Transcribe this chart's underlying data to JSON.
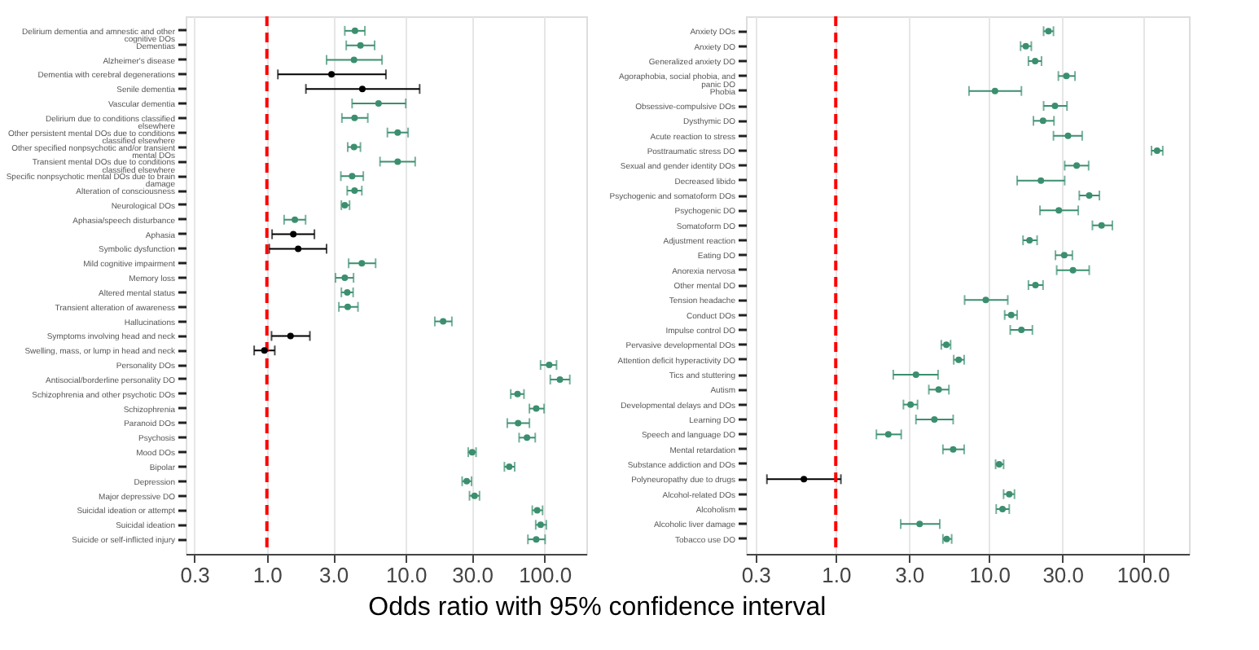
{
  "chart_data": [
    {
      "type": "scatter",
      "orientation": "horizontal",
      "xlabel": "Odds ratio with 95% confidence interval",
      "log": "x",
      "grid": "x",
      "marker": "circle",
      "xlim": [
        0.26,
        200
      ],
      "xticks": [
        {
          "value": 0.3,
          "label": "0.3"
        },
        {
          "value": 1,
          "label": "1.0"
        },
        {
          "value": 3,
          "label": "3.0"
        },
        {
          "value": 10,
          "label": "10.0"
        },
        {
          "value": 30,
          "label": "30.0"
        },
        {
          "value": 100,
          "label": "100.0"
        }
      ],
      "ref_lines": [
        {
          "axis": "x",
          "value": 1,
          "label": null,
          "color": "#ff0000",
          "line_style": "dashed"
        }
      ],
      "categories": [
        "Delirium dementia and amnestic and other cognitive DOs",
        "Dementias",
        "Alzheimer's disease",
        "Dementia with cerebral degenerations",
        "Senile dementia",
        "Vascular dementia",
        "Delirium due to conditions classified elsewhere",
        "Other persistent mental DOs due to conditions classified elsewhere",
        "Other specified nonpsychotic and/or transient mental DOs",
        "Transient mental DOs due to conditions classified elsewhere",
        "Specific nonpsychotic mental DOs due to brain damage",
        "Alteration of consciousness",
        "Neurological DOs",
        "Aphasia/speech disturbance",
        "Aphasia",
        "Symbolic dysfunction",
        "Mild cognitive impairment",
        "Memory loss",
        "Altered mental status",
        "Transient alteration of awareness",
        "Hallucinations",
        "Symptoms involving head and neck",
        "Swelling, mass, or lump in head and neck",
        "Personality DOs",
        "Antisocial/borderline personality DO",
        "Schizophrenia and other psychotic DOs",
        "Schizophrenia",
        "Paranoid DOs",
        "Psychosis",
        "Mood DOs",
        "Bipolar",
        "Depression",
        "Major depressive DO",
        "Suicidal ideation or attempt",
        "Suicidal ideation",
        "Suicide or self-inflicted injury"
      ],
      "values": [
        4.31,
        4.72,
        4.24,
        2.92,
        4.87,
        6.37,
        4.28,
        8.75,
        4.24,
        8.75,
        4.11,
        4.28,
        3.64,
        1.59,
        1.55,
        1.68,
        4.83,
        3.64,
        3.79,
        3.82,
        18.6,
        1.48,
        0.96,
        108,
        129,
        63.9,
        87.1,
        64.5,
        74.7,
        30.1,
        55.7,
        27.5,
        31.3,
        88.5,
        93.7,
        87.1
      ],
      "errors": [
        [
          3.64,
          5.08
        ],
        [
          3.73,
          5.97
        ],
        [
          2.69,
          6.75
        ],
        [
          1.2,
          7.2
        ],
        [
          1.91,
          12.6
        ],
        [
          4.11,
          10.0
        ],
        [
          3.47,
          5.33
        ],
        [
          7.38,
          10.4
        ],
        [
          3.82,
          4.72
        ],
        [
          6.53,
          11.7
        ],
        [
          3.41,
          4.95
        ],
        [
          3.79,
          4.83
        ],
        [
          3.44,
          3.94
        ],
        [
          1.33,
          1.9
        ],
        [
          1.09,
          2.2
        ],
        [
          1.04,
          2.69
        ],
        [
          3.88,
          6.07
        ],
        [
          3.12,
          4.21
        ],
        [
          3.44,
          4.18
        ],
        [
          3.3,
          4.53
        ],
        [
          16.2,
          21.5
        ],
        [
          1.08,
          2.04
        ],
        [
          0.81,
          1.14
        ],
        [
          93.6,
          122
        ],
        [
          110,
          152
        ],
        [
          57.1,
          71.1
        ],
        [
          77.8,
          99.2
        ],
        [
          53.9,
          77.8
        ],
        [
          65.6,
          85.7
        ],
        [
          28.2,
          32.1
        ],
        [
          51.4,
          60.9
        ],
        [
          25.5,
          29.8
        ],
        [
          28.8,
          34.0
        ],
        [
          81.6,
          96.8
        ],
        [
          86.4,
          103
        ],
        [
          75.9,
          101
        ]
      ],
      "colors": [
        "#3b8f6f",
        "#3b8f6f",
        "#3b8f6f",
        "#000000",
        "#000000",
        "#3b8f6f",
        "#3b8f6f",
        "#3b8f6f",
        "#3b8f6f",
        "#3b8f6f",
        "#3b8f6f",
        "#3b8f6f",
        "#3b8f6f",
        "#3b8f6f",
        "#000000",
        "#000000",
        "#3b8f6f",
        "#3b8f6f",
        "#3b8f6f",
        "#3b8f6f",
        "#3b8f6f",
        "#000000",
        "#000000",
        "#3b8f6f",
        "#3b8f6f",
        "#3b8f6f",
        "#3b8f6f",
        "#3b8f6f",
        "#3b8f6f",
        "#3b8f6f",
        "#3b8f6f",
        "#3b8f6f",
        "#3b8f6f",
        "#3b8f6f",
        "#3b8f6f",
        "#3b8f6f"
      ]
    },
    {
      "type": "scatter",
      "orientation": "horizontal",
      "log": "x",
      "grid": "x",
      "marker": "circle",
      "xlim": [
        0.26,
        200
      ],
      "xticks": [
        {
          "value": 0.3,
          "label": "0.3"
        },
        {
          "value": 1,
          "label": "1.0"
        },
        {
          "value": 3,
          "label": "3.0"
        },
        {
          "value": 10,
          "label": "10.0"
        },
        {
          "value": 30,
          "label": "30.0"
        },
        {
          "value": 100,
          "label": "100.0"
        }
      ],
      "ref_lines": [
        {
          "axis": "x",
          "value": 1,
          "label": null,
          "color": "#ff0000",
          "line_style": "dashed"
        }
      ],
      "categories": [
        "Anxiety DOs",
        "Anxiety DO",
        "Generalized anxiety DO",
        "Agoraphobia, social phobia, and panic DO",
        "Phobia",
        "Obsessive-compulsive DOs",
        "Dysthymic DO",
        "Acute reaction to stress",
        "Posttraumatic stress DO",
        "Sexual and gender identity DOs",
        "Decreased libido",
        "Psychogenic and somatoform DOs",
        "Psychogenic DO",
        "Somatoform DO",
        "Adjustment reaction",
        "Eating DO",
        "Anorexia nervosa",
        "Other mental DO",
        "Tension headache",
        "Conduct DOs",
        "Impulse control DO",
        "Pervasive developmental DOs",
        "Attention deficit hyperactivity DO",
        "Tics and stuttering",
        "Autism",
        "Developmental delays and DOs",
        "Learning DO",
        "Speech and language DO",
        "Mental retardation",
        "Substance addiction and DOs",
        "Polyneuropathy due to drugs",
        "Alcohol-related DOs",
        "Alcoholism",
        "Alcoholic liver damage",
        "Tobacco use DO"
      ],
      "values": [
        24.3,
        17.3,
        19.9,
        31.8,
        10.9,
        26.8,
        22.4,
        32.6,
        124,
        37.1,
        21.7,
        44.8,
        28.4,
        53.9,
        18.3,
        30.8,
        35.1,
        20.0,
        9.49,
        13.9,
        16.2,
        5.25,
        6.32,
        3.33,
        4.68,
        3.07,
        4.39,
        2.2,
        5.82,
        11.6,
        0.62,
        13.5,
        12.2,
        3.52,
        5.28
      ],
      "errors": [
        [
          22.6,
          26.2
        ],
        [
          16.0,
          18.8
        ],
        [
          18.0,
          21.9
        ],
        [
          28.2,
          36.2
        ],
        [
          7.38,
          16.2
        ],
        [
          22.6,
          32.1
        ],
        [
          19.4,
          26.4
        ],
        [
          26.2,
          40.3
        ],
        [
          114,
          135
        ],
        [
          31.0,
          44.4
        ],
        [
          15.2,
          31.0
        ],
        [
          38.6,
          52.2
        ],
        [
          21.4,
          38.0
        ],
        [
          47.0,
          63.4
        ],
        [
          16.6,
          20.5
        ],
        [
          27.0,
          34.8
        ],
        [
          27.5,
          44.8
        ],
        [
          18.0,
          22.4
        ],
        [
          6.91,
          13.2
        ],
        [
          12.6,
          15.2
        ],
        [
          13.7,
          19.1
        ],
        [
          4.87,
          5.6
        ],
        [
          5.87,
          6.86
        ],
        [
          2.37,
          4.64
        ],
        [
          4.04,
          5.46
        ],
        [
          2.76,
          3.41
        ],
        [
          3.33,
          5.82
        ],
        [
          1.84,
          2.67
        ],
        [
          4.99,
          6.86
        ],
        [
          11.0,
          12.4
        ],
        [
          0.356,
          1.08
        ],
        [
          12.4,
          14.6
        ],
        [
          11.1,
          13.5
        ],
        [
          2.65,
          4.76
        ],
        [
          4.99,
          5.69
        ]
      ],
      "colors": [
        "#3b8f6f",
        "#3b8f6f",
        "#3b8f6f",
        "#3b8f6f",
        "#3b8f6f",
        "#3b8f6f",
        "#3b8f6f",
        "#3b8f6f",
        "#3b8f6f",
        "#3b8f6f",
        "#3b8f6f",
        "#3b8f6f",
        "#3b8f6f",
        "#3b8f6f",
        "#3b8f6f",
        "#3b8f6f",
        "#3b8f6f",
        "#3b8f6f",
        "#3b8f6f",
        "#3b8f6f",
        "#3b8f6f",
        "#3b8f6f",
        "#3b8f6f",
        "#3b8f6f",
        "#3b8f6f",
        "#3b8f6f",
        "#3b8f6f",
        "#3b8f6f",
        "#3b8f6f",
        "#3b8f6f",
        "#000000",
        "#3b8f6f",
        "#3b8f6f",
        "#3b8f6f",
        "#3b8f6f"
      ]
    }
  ]
}
